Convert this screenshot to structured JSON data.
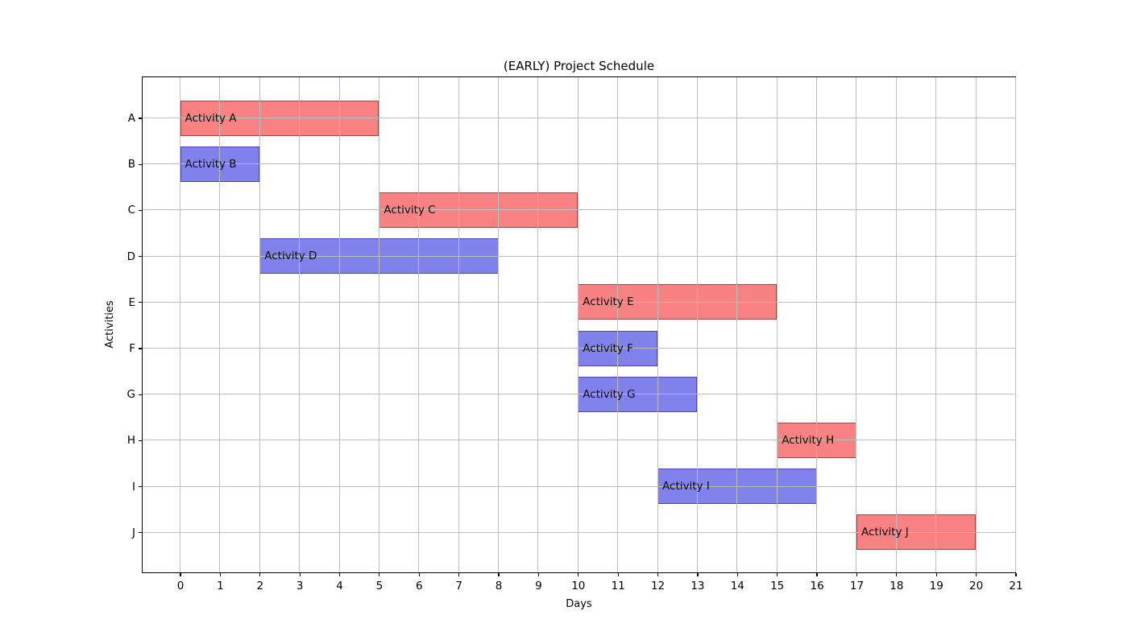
{
  "chart_data": {
    "type": "bar",
    "variant": "gantt",
    "title": "(EARLY) Project Schedule",
    "xlabel": "Days",
    "ylabel": "Activities",
    "xlim": [
      -1,
      21
    ],
    "x_ticks": [
      0,
      1,
      2,
      3,
      4,
      5,
      6,
      7,
      8,
      9,
      10,
      11,
      12,
      13,
      14,
      15,
      16,
      17,
      18,
      19,
      20,
      21
    ],
    "categories": [
      "A",
      "B",
      "C",
      "D",
      "E",
      "F",
      "G",
      "H",
      "I",
      "J"
    ],
    "grid": true,
    "grid_over_bars": true,
    "legend": "none",
    "bars": [
      {
        "activity": "A",
        "label": "Activity A",
        "start": 0,
        "end": 5,
        "color": "red"
      },
      {
        "activity": "B",
        "label": "Activity B",
        "start": 0,
        "end": 2,
        "color": "blue"
      },
      {
        "activity": "C",
        "label": "Activity C",
        "start": 5,
        "end": 10,
        "color": "red"
      },
      {
        "activity": "D",
        "label": "Activity D",
        "start": 2,
        "end": 8,
        "color": "blue"
      },
      {
        "activity": "E",
        "label": "Activity E",
        "start": 10,
        "end": 15,
        "color": "red"
      },
      {
        "activity": "F",
        "label": "Activity F",
        "start": 10,
        "end": 12,
        "color": "blue"
      },
      {
        "activity": "G",
        "label": "Activity G",
        "start": 10,
        "end": 13,
        "color": "blue"
      },
      {
        "activity": "H",
        "label": "Activity H",
        "start": 15,
        "end": 17,
        "color": "red"
      },
      {
        "activity": "I",
        "label": "Activity I",
        "start": 12,
        "end": 16,
        "color": "blue"
      },
      {
        "activity": "J",
        "label": "Activity J",
        "start": 17,
        "end": 20,
        "color": "red"
      }
    ],
    "colors": {
      "red_fill": "#f88181",
      "red_edge": "#a04545",
      "blue_fill": "#8181ec",
      "blue_edge": "#4a48ad",
      "grid": "#bdbdbd",
      "text": "#000000"
    }
  }
}
